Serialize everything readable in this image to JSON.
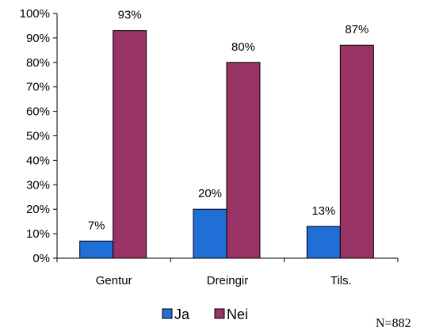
{
  "chart_data": {
    "type": "bar",
    "categories": [
      "Gentur",
      "Dreingir",
      "Tils."
    ],
    "series": [
      {
        "name": "Ja",
        "values": [
          7,
          20,
          13
        ],
        "labels": [
          "7%",
          "20%",
          "13%"
        ],
        "color": "#1F6FD6"
      },
      {
        "name": "Nei",
        "values": [
          93,
          80,
          87
        ],
        "labels": [
          "93%",
          "80%",
          "87%"
        ],
        "color": "#993366"
      }
    ],
    "ylim": [
      0,
      100
    ],
    "yticks": [
      "0%",
      "10%",
      "20%",
      "30%",
      "40%",
      "50%",
      "60%",
      "70%",
      "80%",
      "90%",
      "100%"
    ],
    "grid": false,
    "legend_position": "bottom",
    "annotation": "N=882"
  }
}
